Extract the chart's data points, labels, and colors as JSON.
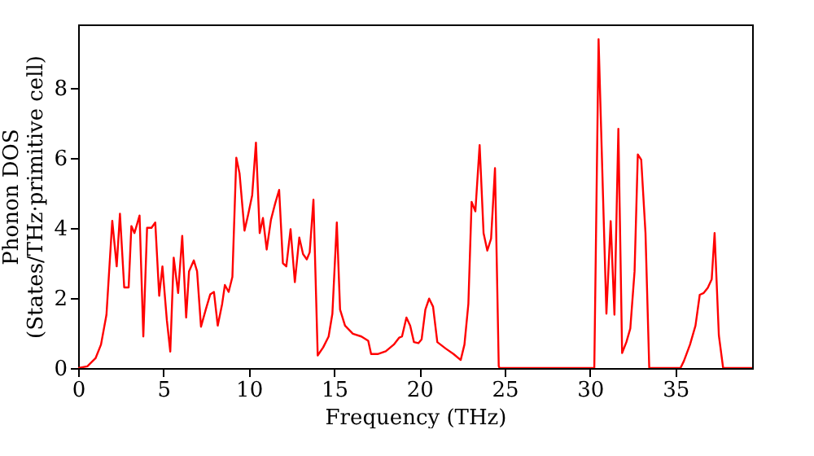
{
  "chart_data": {
    "type": "line",
    "xlabel": "Frequency (THz)",
    "ylabel": "Phonon DOS\n(States/THz·primitive cell)",
    "xlim": [
      0,
      39.5
    ],
    "xticks": [
      0,
      5,
      10,
      15,
      20,
      25,
      30,
      35
    ],
    "ylim": [
      0,
      9.8
    ],
    "yticks": [
      0,
      2,
      4,
      6,
      8
    ],
    "line_style": "solid",
    "series": [
      {
        "color": "#ff0000",
        "x": [
          0,
          0.54,
          1.02,
          1.34,
          1.66,
          2.0,
          2.26,
          2.45,
          2.7,
          2.96,
          3.12,
          3.3,
          3.6,
          3.82,
          4.04,
          4.3,
          4.52,
          4.75,
          4.94,
          5.2,
          5.4,
          5.6,
          5.86,
          6.1,
          6.33,
          6.5,
          6.78,
          6.97,
          7.2,
          7.48,
          7.74,
          7.96,
          8.18,
          8.44,
          8.6,
          8.82,
          9.04,
          9.27,
          9.46,
          9.75,
          9.97,
          10.2,
          10.42,
          10.64,
          10.83,
          11.05,
          11.3,
          11.55,
          11.78,
          12.0,
          12.2,
          12.45,
          12.7,
          12.96,
          13.18,
          13.4,
          13.57,
          13.79,
          14.04,
          14.36,
          14.68,
          14.9,
          15.16,
          15.35,
          15.64,
          16.1,
          16.6,
          17.0,
          17.17,
          17.55,
          18.03,
          18.5,
          18.82,
          18.98,
          19.24,
          19.46,
          19.68,
          19.94,
          20.13,
          20.35,
          20.57,
          20.8,
          21.05,
          21.53,
          22.0,
          22.42,
          22.64,
          22.87,
          23.06,
          23.28,
          23.53,
          23.76,
          23.98,
          24.2,
          24.43,
          24.65,
          24.7,
          30.0,
          30.25,
          30.5,
          30.76,
          30.96,
          31.21,
          31.43,
          31.66,
          31.88,
          32.13,
          32.36,
          32.61,
          32.8,
          33.0,
          33.25,
          33.47,
          35.3,
          35.5,
          35.86,
          36.18,
          36.43,
          36.66,
          36.9,
          37.13,
          37.3,
          37.55,
          37.8,
          39.5
        ],
        "values": [
          0,
          0.05,
          0.28,
          0.67,
          1.52,
          4.2,
          2.9,
          4.4,
          2.3,
          2.3,
          4.05,
          3.85,
          4.35,
          0.9,
          4.0,
          4.0,
          4.15,
          2.06,
          2.9,
          1.36,
          0.47,
          3.15,
          2.14,
          3.77,
          1.44,
          2.76,
          3.07,
          2.76,
          1.18,
          1.67,
          2.1,
          2.17,
          1.21,
          1.83,
          2.37,
          2.17,
          2.6,
          6.0,
          5.55,
          3.92,
          4.39,
          4.93,
          6.43,
          3.85,
          4.28,
          3.38,
          4.23,
          4.7,
          5.08,
          2.99,
          2.9,
          3.96,
          2.45,
          3.72,
          3.25,
          3.1,
          3.3,
          4.8,
          0.36,
          0.59,
          0.9,
          1.55,
          4.15,
          1.67,
          1.21,
          0.98,
          0.9,
          0.78,
          0.4,
          0.4,
          0.48,
          0.67,
          0.87,
          0.9,
          1.44,
          1.21,
          0.74,
          0.71,
          0.82,
          1.67,
          1.98,
          1.75,
          0.74,
          0.56,
          0.4,
          0.23,
          0.67,
          1.83,
          4.74,
          4.47,
          6.36,
          3.85,
          3.35,
          3.69,
          5.7,
          0.05,
          0,
          0,
          0,
          9.38,
          4.93,
          1.55,
          4.19,
          1.52,
          6.82,
          0.43,
          0.74,
          1.13,
          2.76,
          6.09,
          5.94,
          3.85,
          0,
          0,
          0.2,
          0.67,
          1.21,
          2.09,
          2.14,
          2.29,
          2.53,
          3.85,
          0.93,
          0,
          0
        ]
      }
    ]
  }
}
